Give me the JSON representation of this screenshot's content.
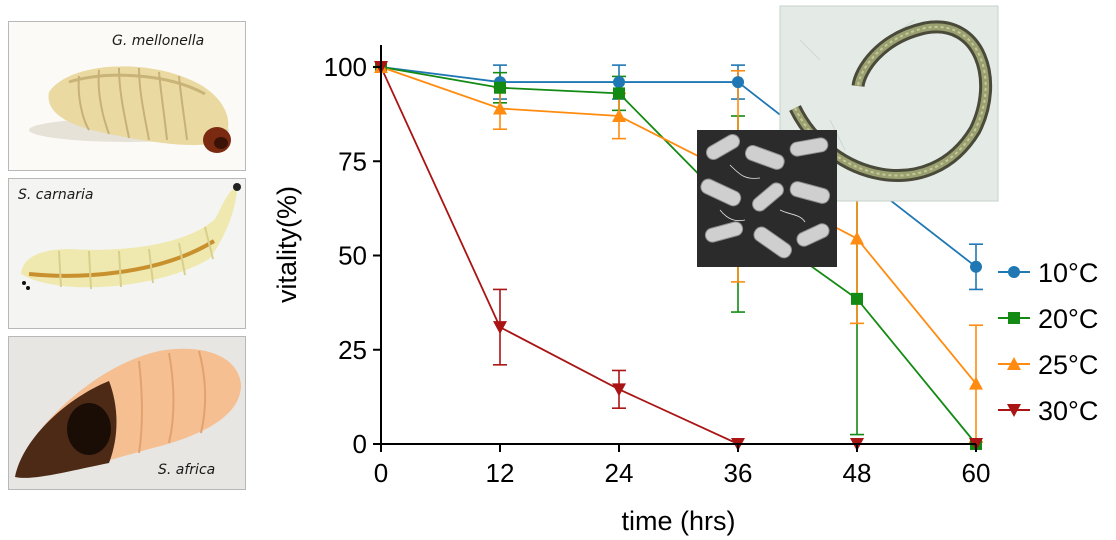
{
  "panels": [
    {
      "caption": "G. mellonella"
    },
    {
      "caption": "S. carnaria"
    },
    {
      "caption": "S. africa"
    }
  ],
  "chart_data": {
    "type": "line",
    "title": "",
    "xlabel": "time (hrs)",
    "ylabel": "vitality(%)",
    "x": [
      0,
      12,
      24,
      36,
      48,
      60
    ],
    "xticks": [
      "0",
      "12",
      "24",
      "36",
      "48",
      "60"
    ],
    "yticks": [
      "0",
      "25",
      "50",
      "75",
      "100"
    ],
    "xlim": [
      0,
      60
    ],
    "ylim": [
      0,
      105
    ],
    "legend_position": "right",
    "grid": false,
    "series": [
      {
        "name": "10°C",
        "marker": "circle",
        "color": "#1f77b4",
        "x": [
          0,
          12,
          24,
          36,
          60
        ],
        "values": [
          100,
          96,
          96,
          96,
          47
        ],
        "err": [
          0,
          4.5,
          4.5,
          4.5,
          6
        ]
      },
      {
        "name": "20°C",
        "marker": "square",
        "color": "#138a13",
        "x": [
          0,
          12,
          24,
          36,
          48,
          60
        ],
        "values": [
          100,
          94.5,
          93,
          61,
          38.5,
          0
        ],
        "err": [
          0,
          4,
          4.5,
          26,
          36,
          0
        ]
      },
      {
        "name": "25°C",
        "marker": "triangle-up",
        "color": "#ff8c10",
        "x": [
          0,
          12,
          24,
          36,
          48,
          60
        ],
        "values": [
          100,
          89,
          87,
          71,
          54.5,
          16
        ],
        "err": [
          0,
          5.5,
          6,
          28,
          22.5,
          15.5
        ]
      },
      {
        "name": "30°C",
        "marker": "triangle-down",
        "color": "#aa1414",
        "x": [
          0,
          12,
          24,
          36,
          48,
          60
        ],
        "values": [
          100,
          31,
          14.5,
          0,
          0,
          0
        ],
        "err": [
          0,
          10,
          5,
          0,
          0,
          0
        ]
      }
    ]
  }
}
